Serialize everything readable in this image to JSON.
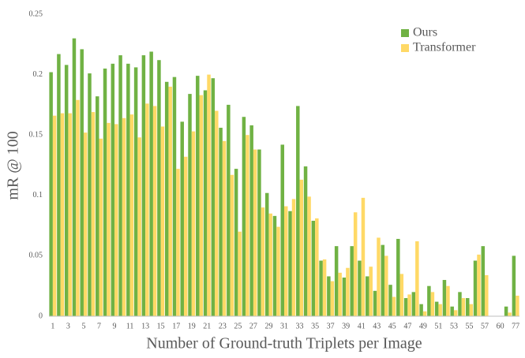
{
  "chart_data": {
    "type": "bar",
    "x_label": "Number of Ground-truth Triplets per Image",
    "y_label": "mR @ 100",
    "categories": [
      1,
      null,
      3,
      null,
      5,
      null,
      7,
      null,
      9,
      null,
      11,
      null,
      13,
      null,
      15,
      null,
      17,
      null,
      19,
      null,
      21,
      null,
      23,
      null,
      25,
      null,
      27,
      null,
      29,
      null,
      31,
      null,
      33,
      null,
      35,
      null,
      37,
      null,
      39,
      null,
      41,
      null,
      43,
      null,
      45,
      null,
      47,
      null,
      49,
      null,
      51,
      null,
      53,
      null,
      55,
      null,
      57,
      null,
      60,
      null,
      77
    ],
    "series": [
      {
        "name": "Ours",
        "color": "#70b244",
        "values": [
          0.202,
          0.217,
          0.208,
          0.23,
          0.221,
          0.201,
          0.182,
          0.205,
          0.209,
          0.216,
          0.209,
          0.206,
          0.216,
          0.219,
          0.212,
          0.194,
          0.198,
          0.161,
          0.184,
          0.199,
          0.187,
          0.197,
          0.156,
          0.175,
          0.122,
          0.165,
          0.158,
          0.138,
          0.102,
          0.083,
          0.142,
          0.087,
          0.174,
          0.124,
          0.079,
          0.046,
          0.033,
          0.058,
          0.032,
          0.058,
          0.046,
          0.033,
          0.021,
          0.059,
          0.026,
          0.064,
          0.015,
          0.02,
          0.01,
          0.025,
          0.012,
          0.03,
          0.008,
          0.02,
          0.015,
          0.046,
          0.058,
          0,
          0,
          0.008,
          0.05
        ]
      },
      {
        "name": "Transformer",
        "color": "#ffd966",
        "values": [
          0.166,
          0.168,
          0.168,
          0.179,
          0.152,
          0.169,
          0.147,
          0.16,
          0.159,
          0.164,
          0.167,
          0.148,
          0.176,
          0.174,
          0.157,
          0.19,
          0.122,
          0.132,
          0.153,
          0.183,
          0.2,
          0.17,
          0.145,
          0.117,
          0.07,
          0.15,
          0.138,
          0.09,
          0.085,
          0.074,
          0.091,
          0.097,
          0.113,
          0.099,
          0.081,
          0.047,
          0.029,
          0.036,
          0.04,
          0.086,
          0.098,
          0.041,
          0.065,
          0.05,
          0.016,
          0.035,
          0.018,
          0.062,
          0.004,
          0.02,
          0.01,
          0.025,
          0.005,
          0.015,
          0.01,
          0.051,
          0.034,
          0,
          0,
          0.003,
          0.017
        ]
      }
    ],
    "ylim": [
      0,
      0.25
    ],
    "yticks": [
      0,
      0.05,
      0.1,
      0.15,
      0.2,
      0.25
    ],
    "grid": false,
    "legend": "top-right"
  }
}
